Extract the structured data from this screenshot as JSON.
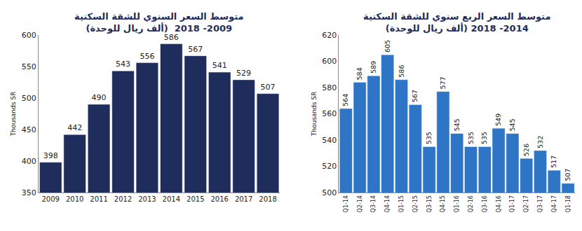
{
  "chart_data": [
    {
      "type": "bar",
      "title": "متوسط السعر السنوي للشقة السكنية\n(ألف ريال للوحدة)  2009- 2018",
      "y_label": "Thousands SR",
      "categories": [
        "2009",
        "2010",
        "2011",
        "2012",
        "2013",
        "2014",
        "2015",
        "2016",
        "2017",
        "2018"
      ],
      "values": [
        398,
        442,
        490,
        543,
        556,
        586,
        567,
        541,
        529,
        507
      ],
      "color": "#1f2d5c",
      "ylim": [
        350,
        600
      ],
      "yticks": [
        350,
        400,
        450,
        500,
        550,
        600
      ],
      "grid": false,
      "data_labels": true
    },
    {
      "type": "bar",
      "title": "متوسط السعر الربع سنوي للشقة السكنية\n(ألف ريال للوحدة) 2014- 2018",
      "y_label": "Thousands SR",
      "categories": [
        "Q1-14",
        "Q2-14",
        "Q3-14",
        "Q4-14",
        "Q1-15",
        "Q2-15",
        "Q3-15",
        "Q4-15",
        "Q1-16",
        "Q2-16",
        "Q3-16",
        "Q4-16",
        "Q1-17",
        "Q2-17",
        "Q3-17",
        "Q4-17",
        "Q1-18"
      ],
      "values": [
        564,
        584,
        589,
        605,
        586,
        567,
        535,
        577,
        545,
        535,
        535,
        549,
        545,
        526,
        532,
        517,
        507
      ],
      "color": "#2e75c6",
      "ylim": [
        500,
        620
      ],
      "yticks": [
        500,
        520,
        540,
        560,
        580,
        600,
        620
      ],
      "grid": false,
      "data_labels": true
    }
  ]
}
